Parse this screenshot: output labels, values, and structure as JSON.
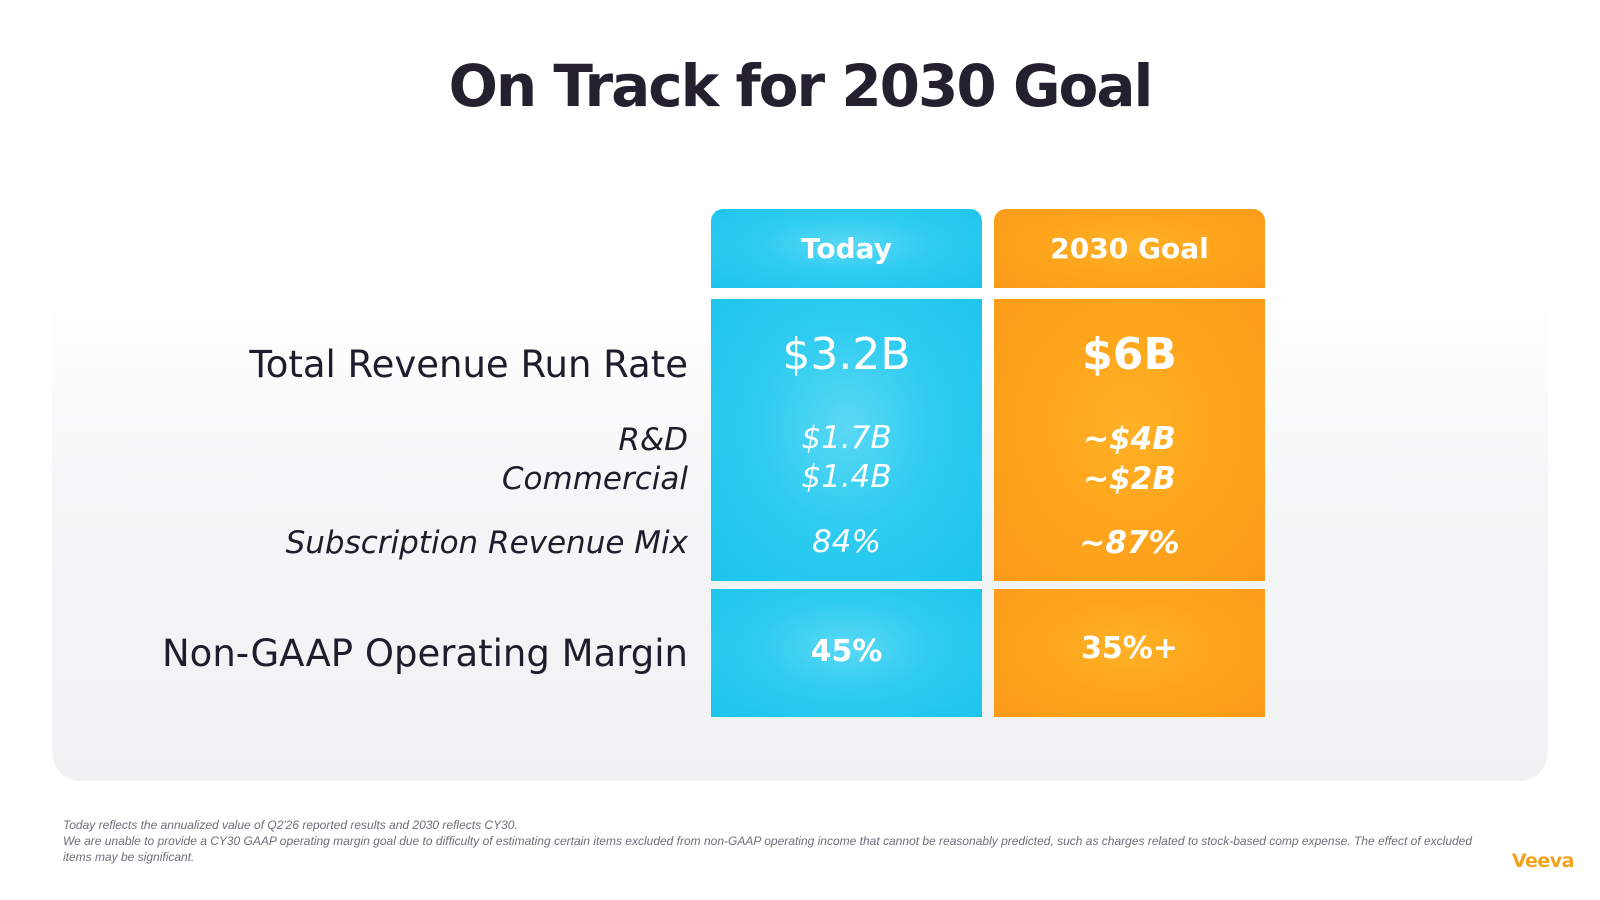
{
  "title": "On Track for 2030 Goal",
  "columns": {
    "today": "Today",
    "goal": "2030 Goal"
  },
  "rows": {
    "total_revenue": {
      "label": "Total Revenue Run Rate",
      "today": "$3.2B",
      "goal": "$6B"
    },
    "rd": {
      "label": "R&D",
      "today": "$1.7B",
      "goal": "~$4B"
    },
    "commercial": {
      "label": "Commercial",
      "today": "$1.4B",
      "goal": "~$2B"
    },
    "subscription_mix": {
      "label": "Subscription Revenue Mix",
      "today": "84%",
      "goal": "~87%"
    },
    "operating_margin": {
      "label": "Non-GAAP Operating Margin",
      "today": "45%",
      "goal": "35%+"
    }
  },
  "footnotes": {
    "line1": "Today reflects the annualized value of Q2'26 reported results and 2030 reflects CY30.",
    "line2": "We are unable to provide a CY30 GAAP operating margin goal due to difficulty of estimating certain items excluded from non-GAAP operating income that cannot be reasonably predicted, such as charges related to stock-based comp expense. The effect of excluded items may be significant."
  },
  "brand": "Veeva",
  "colors": {
    "today_accent": "#1cc4ec",
    "goal_accent": "#fb9a1a",
    "brand": "#f4a21c"
  }
}
